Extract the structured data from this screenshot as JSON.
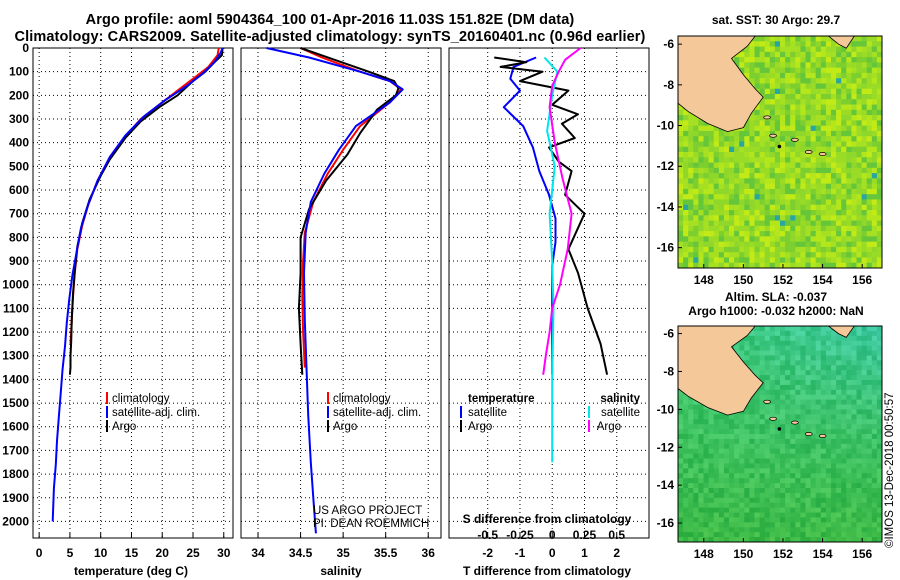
{
  "header": {
    "line1": "Argo profile: aoml 5904364_100 01-Apr-2016 11.03S 151.82E (DM data)",
    "line2": "Climatology: CARS2009. Satellite-adjusted climatology: synTS_20160401.nc (0.96d earlier)"
  },
  "colors": {
    "climatology": "#ff0000",
    "satellite": "#0000ff",
    "argo": "#000000",
    "sat_salinity": "#00e5ee",
    "argo_salinity": "#ff00ff",
    "land": "#f5c89a"
  },
  "chart_data": [
    {
      "type": "line",
      "name": "temperature-profile",
      "xlabel": "temperature (deg C)",
      "ylabel": "",
      "xlim": [
        -1,
        31.5
      ],
      "ylim": [
        2070,
        0
      ],
      "x_ticks": [
        0,
        5,
        10,
        15,
        20,
        25,
        30
      ],
      "y_ticks": [
        0,
        100,
        200,
        300,
        400,
        500,
        600,
        700,
        800,
        900,
        1000,
        1100,
        1200,
        1300,
        1400,
        1500,
        1600,
        1700,
        1800,
        1900,
        2000
      ],
      "legend": [
        "climatology",
        "satellite-adj. clim.",
        "Argo"
      ],
      "series": [
        {
          "name": "climatology",
          "x": [
            29.2,
            29.0,
            27.5,
            25.5,
            22.5,
            19.5,
            16.5,
            13.8,
            11.5,
            9.5,
            8.0,
            7.0,
            6.2,
            5.8,
            5.5,
            5.3,
            5.1
          ],
          "y": [
            0,
            30,
            80,
            120,
            180,
            240,
            300,
            380,
            460,
            560,
            660,
            750,
            850,
            950,
            1050,
            1150,
            1250
          ]
        },
        {
          "name": "satellite-adj. clim.",
          "x": [
            29.8,
            29.5,
            28.5,
            26.5,
            24.0,
            20.5,
            17.0,
            14.0,
            11.5,
            9.5,
            8.0,
            6.8,
            6.1,
            5.4,
            4.9,
            4.5,
            4.2,
            3.8,
            3.5,
            3.2,
            2.9,
            2.7,
            2.4,
            2.2
          ],
          "y": [
            0,
            20,
            60,
            110,
            160,
            220,
            290,
            370,
            460,
            560,
            660,
            760,
            860,
            960,
            1060,
            1160,
            1260,
            1360,
            1460,
            1560,
            1660,
            1760,
            1860,
            2000
          ]
        },
        {
          "name": "Argo",
          "x": [
            29.8,
            29.7,
            28.5,
            27.0,
            25.0,
            22.5,
            19.5,
            16.5,
            14.0,
            11.5,
            10.0,
            8.2,
            7.0,
            6.2,
            5.8,
            5.5,
            5.3,
            5.2,
            5.1,
            5.1,
            5.0
          ],
          "y": [
            5,
            30,
            60,
            100,
            140,
            200,
            250,
            310,
            380,
            470,
            540,
            640,
            740,
            840,
            940,
            1040,
            1140,
            1240,
            1300,
            1350,
            1380
          ]
        }
      ]
    },
    {
      "type": "line",
      "name": "salinity-profile",
      "xlabel": "salinity",
      "xlim": [
        33.8,
        36.15
      ],
      "ylim": [
        2070,
        0
      ],
      "x_ticks": [
        34,
        34.5,
        35,
        35.5,
        36
      ],
      "legend": [
        "climatology",
        "satellite-adj. clim.",
        "Argo"
      ],
      "annotation": [
        "US ARGO PROJECT",
        "PI: DEAN ROEMMICH"
      ],
      "series": [
        {
          "name": "climatology",
          "x": [
            34.5,
            34.75,
            35.2,
            35.55,
            35.68,
            35.55,
            35.2,
            35.0,
            34.82,
            34.65,
            34.55,
            34.53,
            34.52,
            34.53,
            34.55
          ],
          "y": [
            0,
            40,
            100,
            140,
            175,
            230,
            330,
            430,
            530,
            650,
            780,
            900,
            1050,
            1200,
            1350
          ]
        },
        {
          "name": "satellite-adj. clim.",
          "x": [
            34.1,
            34.6,
            35.2,
            35.55,
            35.7,
            35.55,
            35.15,
            34.95,
            34.78,
            34.62,
            34.56,
            34.54,
            34.55,
            34.57,
            34.59,
            34.62,
            34.65,
            34.68
          ],
          "y": [
            0,
            40,
            100,
            140,
            175,
            230,
            330,
            430,
            530,
            650,
            780,
            950,
            1150,
            1350,
            1550,
            1750,
            1900,
            2050
          ]
        },
        {
          "name": "Argo",
          "x": [
            34.5,
            34.9,
            35.3,
            35.6,
            35.65,
            35.62,
            35.4,
            35.2,
            35.05,
            34.8,
            34.6,
            34.5,
            34.5,
            34.48,
            34.5,
            34.52
          ],
          "y": [
            0,
            50,
            100,
            140,
            170,
            200,
            260,
            360,
            450,
            560,
            680,
            800,
            950,
            1100,
            1250,
            1380
          ]
        }
      ]
    },
    {
      "type": "line",
      "name": "difference-profile",
      "xlabel": "T difference from climatology",
      "xlabel_top": "S difference from climatology",
      "xlim": [
        -3.2,
        3.0
      ],
      "ylim": [
        2070,
        0
      ],
      "x_ticks": [
        -2,
        -1,
        0,
        1,
        2
      ],
      "x_ticks_top": [
        "-0.5",
        "-0.25",
        "0",
        "0.25",
        "0.5"
      ],
      "legend_left": [
        "temperature",
        "satellite",
        "Argo"
      ],
      "legend_right": [
        "salinity",
        "satellite",
        "Argo"
      ],
      "series": [
        {
          "name": "T satellite",
          "x": [
            -0.5,
            -1.2,
            -1.3,
            -1.0,
            -1.5,
            -0.9,
            -0.6,
            -0.4,
            -0.1,
            0.1,
            0.1,
            0.0,
            0.0,
            0.0,
            0.0,
            0.0,
            0.0
          ],
          "y": [
            40,
            80,
            130,
            180,
            250,
            330,
            420,
            520,
            620,
            720,
            820,
            920,
            1000,
            1100,
            1200,
            1300,
            1380
          ]
        },
        {
          "name": "T Argo",
          "x": [
            -1.8,
            -0.8,
            -1.6,
            -0.3,
            -1.0,
            0.5,
            0.0,
            0.8,
            0.3,
            0.7,
            -0.1,
            0.2,
            0.6,
            0.4,
            1.0,
            0.5,
            0.8,
            1.1,
            1.5,
            1.7
          ],
          "y": [
            40,
            60,
            80,
            100,
            140,
            180,
            240,
            280,
            320,
            380,
            420,
            480,
            520,
            620,
            700,
            850,
            950,
            1100,
            1250,
            1380
          ]
        },
        {
          "name": "S satellite",
          "x": [
            -0.06,
            0.04,
            0.0,
            -0.04,
            0.02,
            -0.02,
            0.0,
            0.01,
            0.0,
            0.0
          ],
          "y": [
            40,
            100,
            200,
            350,
            500,
            700,
            900,
            1100,
            1400,
            1750
          ]
        },
        {
          "name": "S Argo",
          "x": [
            0.22,
            0.1,
            0.05,
            0.0,
            -0.02,
            0.02,
            0.08,
            0.15,
            0.12,
            0.06,
            0.0,
            -0.02,
            -0.05,
            -0.07
          ],
          "y": [
            0,
            50,
            100,
            160,
            250,
            400,
            550,
            700,
            850,
            1000,
            1100,
            1200,
            1300,
            1380
          ]
        }
      ]
    },
    {
      "type": "heatmap",
      "name": "sst-map",
      "title": "sat. SST: 30 Argo: 29.7",
      "x_ticks": [
        148,
        150,
        152,
        154,
        156
      ],
      "y_ticks": [
        -6,
        -8,
        -10,
        -12,
        -14,
        -16
      ],
      "xlim": [
        146.7,
        157.0
      ],
      "ylim": [
        -17.0,
        -5.6
      ]
    },
    {
      "type": "heatmap",
      "name": "sla-map",
      "title_line1": "Altim. SLA: -0.037",
      "title_line2": "Argo h1000: -0.032 h2000: NaN",
      "x_ticks": [
        148,
        150,
        152,
        154,
        156
      ],
      "y_ticks": [
        -6,
        -8,
        -10,
        -12,
        -14,
        -16
      ],
      "xlim": [
        146.7,
        157.0
      ],
      "ylim": [
        -17.0,
        -5.6
      ]
    }
  ],
  "watermark": "©IMOS 13-Dec-2018 00:50:57"
}
